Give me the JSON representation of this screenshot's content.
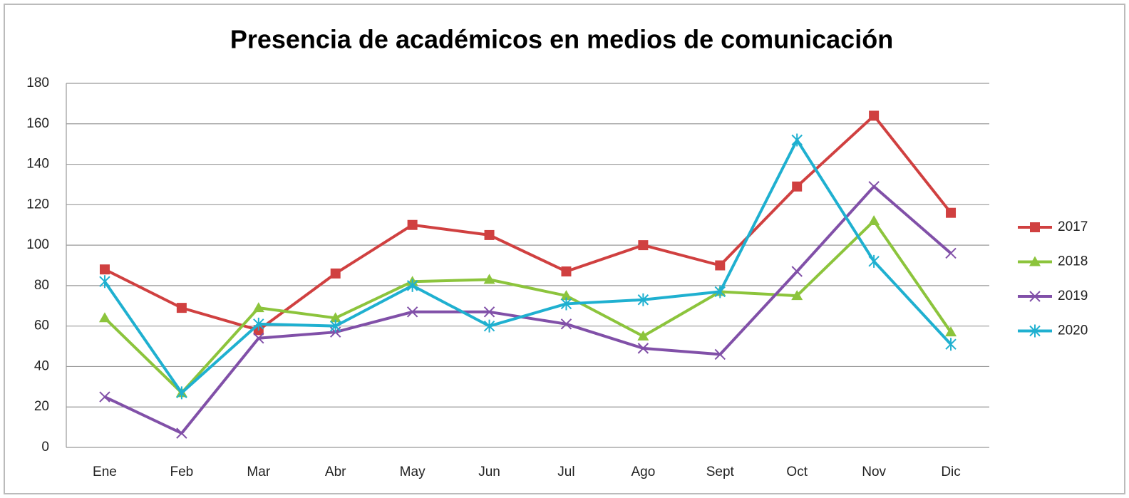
{
  "chart_data": {
    "type": "line",
    "title": "Presencia de académicos en medios de comunicación",
    "categories": [
      "Ene",
      "Feb",
      "Mar",
      "Abr",
      "May",
      "Jun",
      "Jul",
      "Ago",
      "Sept",
      "Oct",
      "Nov",
      "Dic"
    ],
    "series": [
      {
        "name": "2017",
        "color": "#d04040",
        "marker": "square",
        "values": [
          88,
          69,
          58,
          86,
          110,
          105,
          87,
          100,
          90,
          129,
          164,
          116
        ]
      },
      {
        "name": "2018",
        "color": "#8cc43c",
        "marker": "triangle",
        "values": [
          64,
          27,
          69,
          64,
          82,
          83,
          75,
          55,
          77,
          75,
          112,
          57
        ]
      },
      {
        "name": "2019",
        "color": "#8150a8",
        "marker": "x",
        "values": [
          25,
          7,
          54,
          57,
          67,
          67,
          61,
          49,
          46,
          87,
          129,
          96
        ]
      },
      {
        "name": "2020",
        "color": "#1fb0d0",
        "marker": "star",
        "values": [
          82,
          27,
          61,
          60,
          80,
          60,
          71,
          73,
          77,
          152,
          92,
          51
        ]
      }
    ],
    "ylim": [
      0,
      180
    ],
    "yticks": [
      0,
      20,
      40,
      60,
      80,
      100,
      120,
      140,
      160,
      180
    ],
    "grid": true,
    "legend": "right"
  }
}
